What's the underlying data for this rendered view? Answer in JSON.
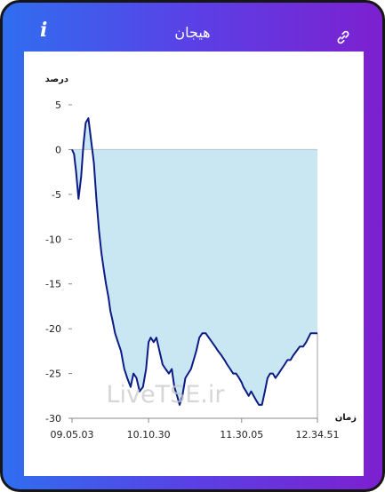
{
  "header": {
    "title": "هیجان",
    "info_icon": "info-icon",
    "info_glyph": "i",
    "link_icon": "link-icon"
  },
  "colors": {
    "gradient_start": "#2f6ef0",
    "gradient_end": "#7d20cf",
    "series_line": "#0c1b86",
    "series_fill": "#c9e7f3",
    "zero_line": "#b5c4d0"
  },
  "watermark": "LiveTSE.ir",
  "chart_data": {
    "type": "area",
    "ylabel": "درصد",
    "xlabel": "زمان",
    "ylim": [
      -30,
      5
    ],
    "yticks": [
      5,
      0,
      -5,
      -10,
      -15,
      -20,
      -25,
      -30
    ],
    "xlim": [
      "09.05.03",
      "12.34.51"
    ],
    "xticks": [
      "09.05.03",
      "10.10.30",
      "11.30.05",
      "12.34.51"
    ],
    "grid": false,
    "x": [
      "09.05.03",
      "09.06.47",
      "09.08.34",
      "09.10.38",
      "09.12.52",
      "09.14.45",
      "09.16.47",
      "09.19.02",
      "09.21.25",
      "09.23.47",
      "09.25.54",
      "09.28.04",
      "09.30.08",
      "09.32.19",
      "09.34.06",
      "09.36.14",
      "09.37.47",
      "09.39.34",
      "09.41.51",
      "09.44.23",
      "09.46.55",
      "09.49.44",
      "09.52.15",
      "09.55.10",
      "09.57.34",
      "10.00.08",
      "10.02.47",
      "10.05.43",
      "10.08.24",
      "10.10.30",
      "10.12.18",
      "10.14.55",
      "10.17.10",
      "10.19.49",
      "10.22.29",
      "10.25.02",
      "10.27.53",
      "10.30.21",
      "10.32.31",
      "10.34.53",
      "10.37.00",
      "10.39.22",
      "10.41.56",
      "10.44.18",
      "10.46.44",
      "10.49.01",
      "10.51.15",
      "10.53.54",
      "10.56.29",
      "10.59.18",
      "11.01.59",
      "11.04.48",
      "11.07.26",
      "11.10.01",
      "11.12.56",
      "11.15.23",
      "11.17.43",
      "11.20.17",
      "11.22.46",
      "11.25.17",
      "11.27.52",
      "11.30.05",
      "11.31.30",
      "11.33.52",
      "11.36.05",
      "11.38.14",
      "11.40.23",
      "11.42.28",
      "11.44.52",
      "11.47.25",
      "11.49.54",
      "11.52.14",
      "11.54.23",
      "11.56.46",
      "11.58.59",
      "12.01.41",
      "12.04.15",
      "12.06.50",
      "12.09.13",
      "12.11.48",
      "12.14.08",
      "12.16.53",
      "12.19.43",
      "12.22.36",
      "12.25.10",
      "12.27.12",
      "12.29.06",
      "12.30.54",
      "12.32.40",
      "12.34.51"
    ],
    "series": [
      {
        "values": [
          0.0,
          -0.5,
          -2.5,
          -5.5,
          -3.0,
          0.5,
          3.0,
          3.5,
          1.0,
          -1.5,
          -5.5,
          -9.0,
          -11.5,
          -13.5,
          -15.0,
          -16.5,
          -18.0,
          -19.0,
          -20.5,
          -21.5,
          -22.5,
          -24.5,
          -25.5,
          -26.5,
          -25.0,
          -25.5,
          -27.0,
          -26.5,
          -24.5,
          -21.5,
          -21.0,
          -21.5,
          -21.0,
          -22.5,
          -24.0,
          -24.5,
          -25.0,
          -24.5,
          -26.5,
          -27.5,
          -28.5,
          -27.5,
          -25.5,
          -25.0,
          -24.5,
          -23.5,
          -22.5,
          -21.0,
          -20.5,
          -20.5,
          -21.0,
          -21.5,
          -22.0,
          -22.5,
          -23.0,
          -23.5,
          -24.0,
          -24.5,
          -25.0,
          -25.0,
          -25.5,
          -26.0,
          -26.5,
          -27.0,
          -27.5,
          -27.0,
          -27.5,
          -28.0,
          -28.5,
          -28.5,
          -27.0,
          -25.5,
          -25.0,
          -25.0,
          -25.5,
          -25.0,
          -24.5,
          -24.0,
          -23.5,
          -23.5,
          -23.0,
          -22.5,
          -22.0,
          -22.0,
          -21.5,
          -21.0,
          -20.5,
          -20.5,
          -20.5,
          -20.5
        ]
      }
    ]
  }
}
